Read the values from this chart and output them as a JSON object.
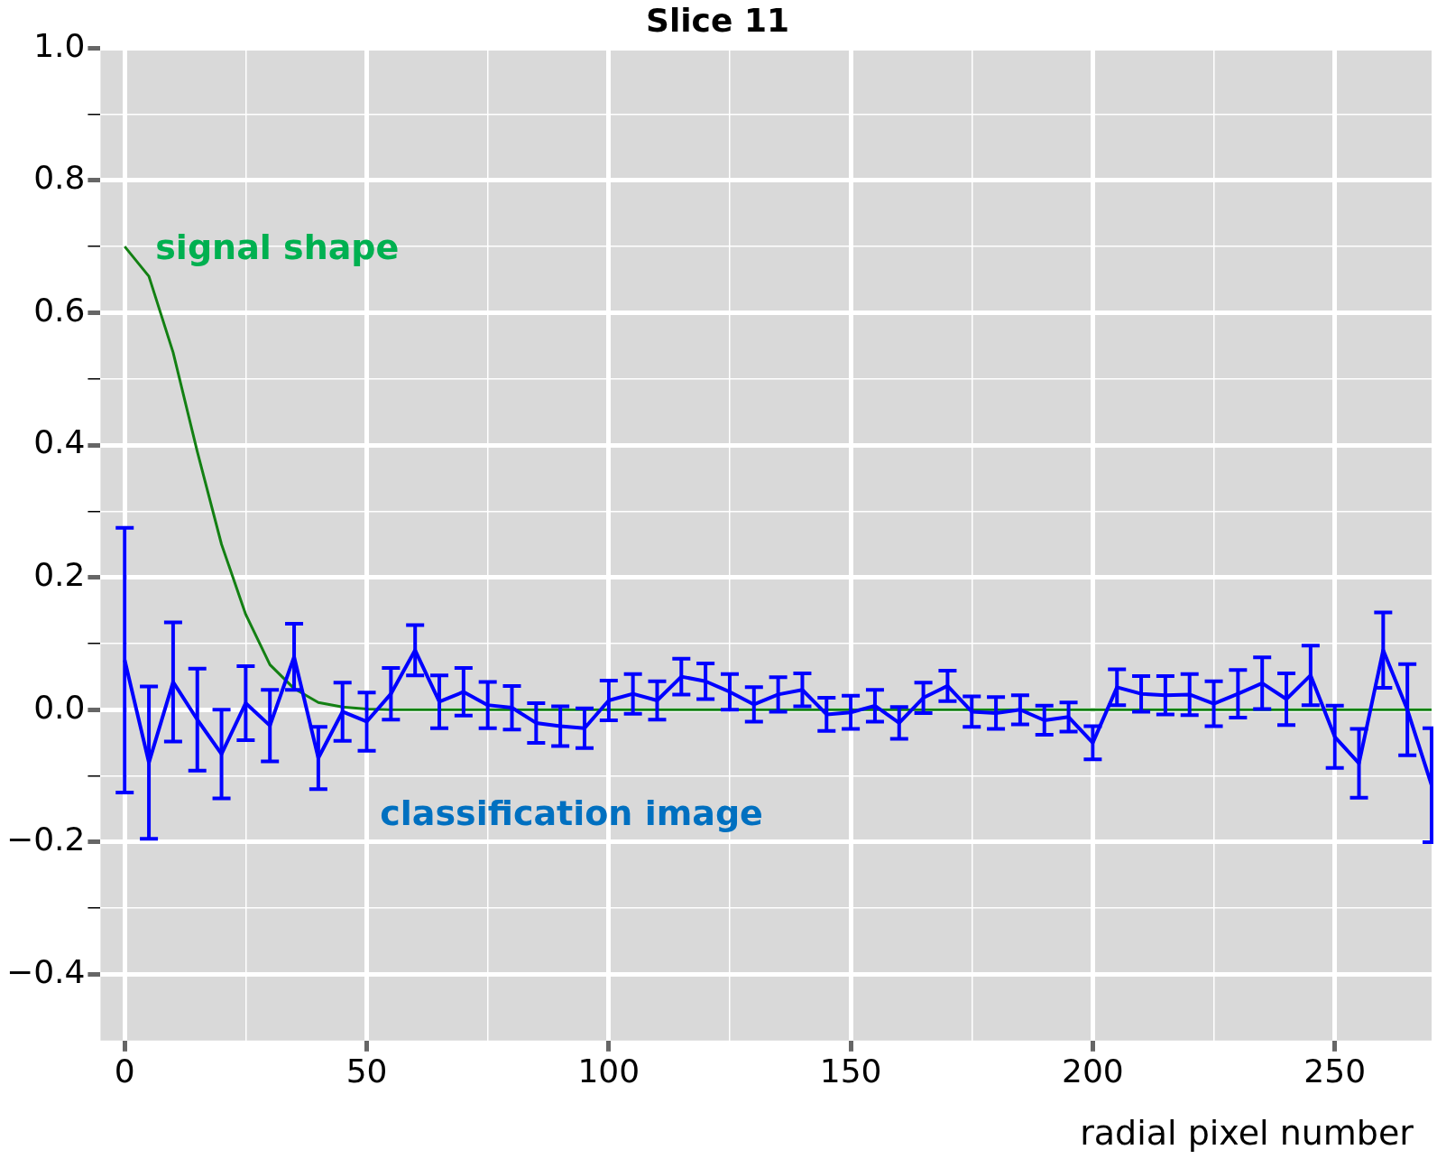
{
  "chart_data": {
    "type": "line",
    "title": "Slice 11",
    "xlabel": "radial pixel number",
    "xlim": [
      -5,
      270
    ],
    "ylim": [
      -0.5,
      1.0
    ],
    "xticks": [
      0,
      {
        "value": 25,
        "label": null
      },
      50,
      {
        "value": 75,
        "label": null
      },
      100,
      {
        "value": 125,
        "label": null
      },
      150,
      {
        "value": 175,
        "label": null
      },
      200,
      {
        "value": 225,
        "label": null
      },
      250
    ],
    "yticks": [
      {
        "value": -0.4,
        "label": "−0.4"
      },
      {
        "value": -0.3,
        "label": null
      },
      {
        "value": -0.2,
        "label": "−0.2"
      },
      {
        "value": -0.1,
        "label": null
      },
      {
        "value": 0,
        "label": "0.0"
      },
      {
        "value": 0.1,
        "label": null
      },
      0.2,
      {
        "value": 0.3,
        "label": null
      },
      0.4,
      {
        "value": 0.5,
        "label": null
      },
      0.6,
      {
        "value": 0.7,
        "label": null
      },
      0.8,
      {
        "value": 0.9,
        "label": null
      },
      {
        "value": 1.0,
        "label": "1.0"
      }
    ],
    "grid": true,
    "legend": false,
    "marker": "none",
    "line_style": "solid",
    "x": [
      0,
      5,
      10,
      15,
      20,
      25,
      30,
      35,
      40,
      45,
      50,
      55,
      60,
      65,
      70,
      75,
      80,
      85,
      90,
      95,
      100,
      105,
      110,
      115,
      120,
      125,
      130,
      135,
      140,
      145,
      150,
      155,
      160,
      165,
      170,
      175,
      180,
      185,
      190,
      195,
      200,
      205,
      210,
      215,
      220,
      225,
      230,
      235,
      240,
      245,
      250,
      255,
      260,
      265,
      270
    ],
    "series": [
      {
        "name": "signal shape",
        "color": "#138013",
        "values": [
          0.7,
          0.655,
          0.54,
          0.39,
          0.25,
          0.144,
          0.068,
          0.032,
          0.011,
          0.004,
          0.001,
          0,
          0,
          0,
          0,
          0,
          0,
          0,
          0,
          0,
          0,
          0,
          0,
          0,
          0,
          0,
          0,
          0,
          0,
          0,
          0,
          0,
          0,
          0,
          0,
          0,
          0,
          0,
          0,
          0,
          0,
          0,
          0,
          0,
          0,
          0,
          0,
          0,
          0,
          0,
          0,
          0,
          0,
          0,
          0
        ]
      },
      {
        "name": "classification image",
        "color": "#0000ff",
        "values": [
          0.075,
          -0.08,
          0.042,
          -0.015,
          -0.067,
          0.01,
          -0.024,
          0.08,
          -0.073,
          -0.003,
          -0.018,
          0.024,
          0.09,
          0.012,
          0.027,
          0.007,
          0.003,
          -0.02,
          -0.025,
          -0.028,
          0.014,
          0.024,
          0.014,
          0.05,
          0.043,
          0.027,
          0.008,
          0.023,
          0.03,
          -0.007,
          -0.004,
          0.006,
          -0.02,
          0.018,
          0.036,
          -0.003,
          -0.005,
          0,
          -0.016,
          -0.011,
          -0.05,
          0.034,
          0.024,
          0.022,
          0.023,
          0.009,
          0.024,
          0.04,
          0.016,
          0.052,
          -0.041,
          -0.081,
          0.09,
          0,
          -0.114
        ],
        "errors": [
          0.2,
          0.115,
          0.09,
          0.077,
          0.067,
          0.056,
          0.054,
          0.05,
          0.047,
          0.044,
          0.044,
          0.039,
          0.038,
          0.04,
          0.036,
          0.035,
          0.033,
          0.03,
          0.03,
          0.03,
          0.03,
          0.03,
          0.029,
          0.027,
          0.027,
          0.027,
          0.026,
          0.026,
          0.025,
          0.025,
          0.025,
          0.024,
          0.024,
          0.023,
          0.023,
          0.023,
          0.024,
          0.022,
          0.022,
          0.022,
          0.025,
          0.027,
          0.027,
          0.029,
          0.031,
          0.034,
          0.036,
          0.039,
          0.039,
          0.045,
          0.047,
          0.052,
          0.057,
          0.069,
          0.086
        ]
      }
    ]
  }
}
